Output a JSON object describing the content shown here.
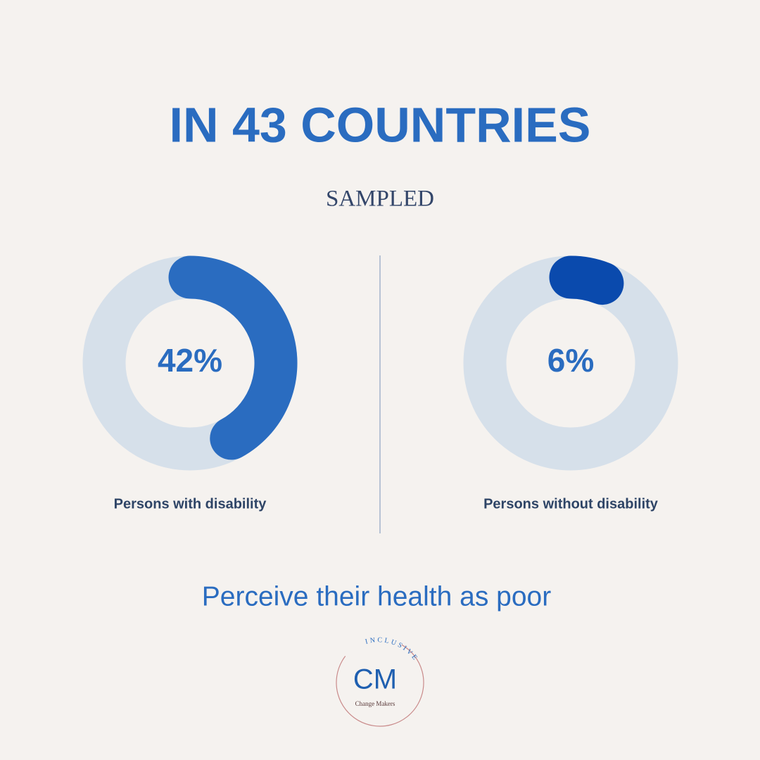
{
  "title": "IN 43 COUNTRIES",
  "subtitle": "SAMPLED",
  "chart_data": [
    {
      "type": "donut",
      "values": [
        42
      ],
      "value_labels": [
        "42%"
      ],
      "label": "Persons with disability",
      "color": "#2a6cc0",
      "track_color": "#d6e0ea"
    },
    {
      "type": "donut",
      "values": [
        6
      ],
      "value_labels": [
        "6%"
      ],
      "label": "Persons without disability",
      "color": "#0a4aad",
      "track_color": "#d6e0ea"
    }
  ],
  "caption": "Perceive their health as poor",
  "logo": {
    "initials": "CM",
    "arc_text": "INCLUSIVE",
    "name": "Change Makers"
  }
}
